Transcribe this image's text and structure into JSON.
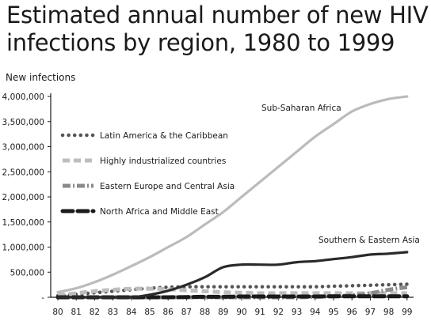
{
  "chart_data": {
    "type": "line",
    "title_lines": [
      "Estimated annual number of new HIV",
      "infections  by region, 1980 to 1999"
    ],
    "ylabel": "New infections",
    "xlabel": "",
    "x": [
      "80",
      "81",
      "82",
      "83",
      "84",
      "85",
      "86",
      "87",
      "88",
      "89",
      "90",
      "91",
      "92",
      "93",
      "94",
      "95",
      "96",
      "97",
      "98",
      "99"
    ],
    "ylim": [
      0,
      4000000
    ],
    "yticks": [
      0,
      500000,
      1000000,
      1500000,
      2000000,
      2500000,
      3000000,
      3500000,
      4000000
    ],
    "ytick_labels": [
      "-",
      "500,000",
      "1,000,000",
      "1,500,000",
      "2,000,000",
      "2,500,000",
      "3,000,000",
      "3,500,000",
      "4,000,000"
    ],
    "grid": false,
    "legend_position": "top-left",
    "series": [
      {
        "name": "Latin America & the Caribbean",
        "style": "dotted",
        "color": "#555555",
        "values": [
          30000,
          60000,
          90000,
          120000,
          150000,
          180000,
          200000,
          210000,
          210000,
          210000,
          210000,
          210000,
          210000,
          210000,
          210000,
          220000,
          230000,
          240000,
          250000,
          260000
        ]
      },
      {
        "name": "Highly industrialized countries",
        "style": "dashed",
        "color": "#bdbdbd",
        "values": [
          40000,
          80000,
          120000,
          150000,
          170000,
          170000,
          160000,
          140000,
          120000,
          100000,
          90000,
          80000,
          80000,
          80000,
          80000,
          80000,
          80000,
          80000,
          80000,
          80000
        ]
      },
      {
        "name": "Eastern Europe and Central Asia",
        "style": "dash-dot",
        "color": "#8a8a8a",
        "values": [
          0,
          0,
          0,
          0,
          0,
          0,
          0,
          0,
          0,
          0,
          0,
          0,
          0,
          0,
          10000,
          20000,
          40000,
          80000,
          150000,
          200000
        ]
      },
      {
        "name": "North Africa and Middle East",
        "style": "long-dash",
        "color": "#1a1a1a",
        "values": [
          0,
          0,
          0,
          0,
          0,
          0,
          0,
          5000,
          10000,
          10000,
          15000,
          15000,
          15000,
          15000,
          15000,
          20000,
          20000,
          20000,
          20000,
          20000
        ]
      },
      {
        "name": "Sub-Saharan Africa",
        "style": "solid",
        "color": "#bbbbbb",
        "values": [
          100000,
          180000,
          300000,
          450000,
          620000,
          800000,
          1000000,
          1200000,
          1450000,
          1700000,
          2000000,
          2300000,
          2600000,
          2900000,
          3200000,
          3450000,
          3700000,
          3850000,
          3950000,
          4000000
        ]
      },
      {
        "name": "Southern & Eastern Asia",
        "style": "solid",
        "color": "#2a2a2a",
        "values": [
          0,
          0,
          0,
          0,
          0,
          50000,
          130000,
          250000,
          400000,
          600000,
          650000,
          650000,
          650000,
          700000,
          720000,
          760000,
          800000,
          850000,
          870000,
          900000
        ]
      }
    ],
    "inline_labels": [
      {
        "text": "Sub-Saharan Africa",
        "series": "Sub-Saharan Africa"
      },
      {
        "text": "Southern & Eastern Asia",
        "series": "Southern & Eastern Asia"
      }
    ]
  }
}
